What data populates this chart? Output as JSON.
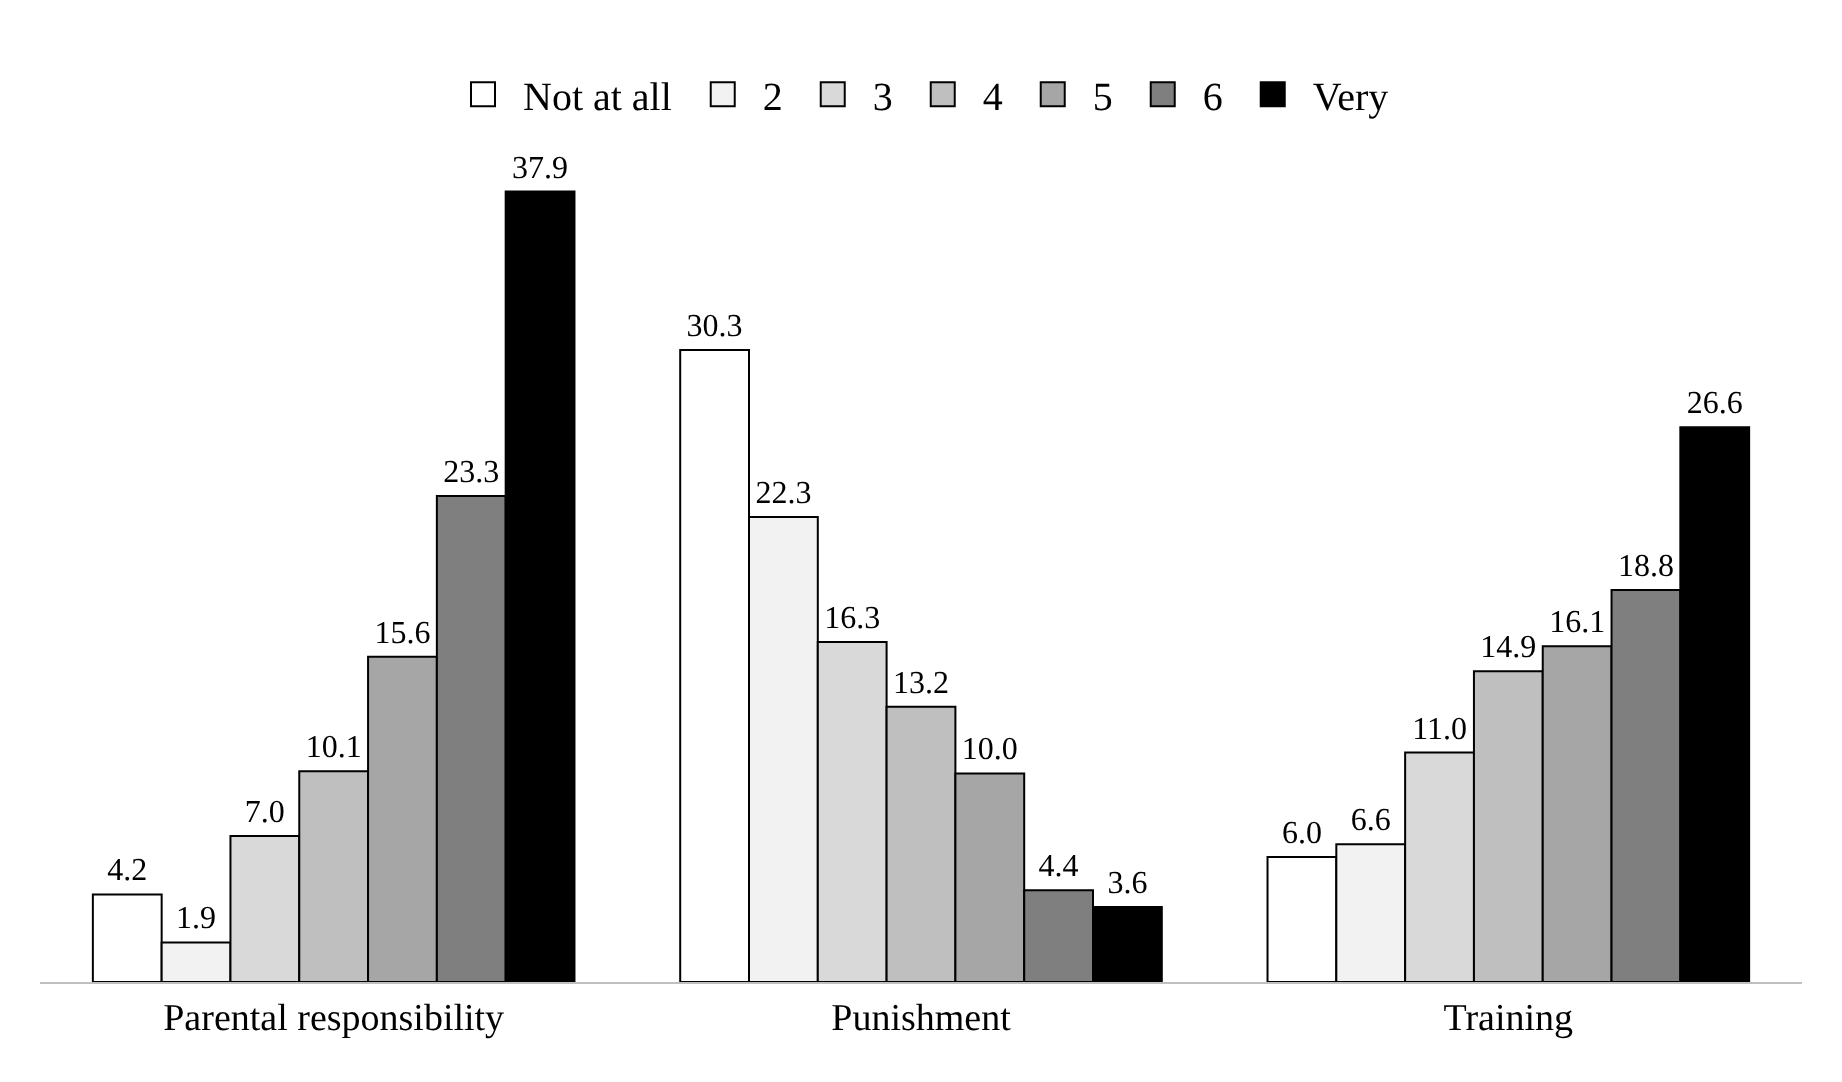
{
  "chart_data": {
    "type": "bar",
    "categories": [
      "Parental responsibility",
      "Punishment",
      "Training"
    ],
    "series": [
      {
        "name": "Not at all",
        "color": "#ffffff",
        "values": [
          4.2,
          30.3,
          6.0
        ],
        "value_labels": [
          "4.2",
          "30.3",
          "6.0"
        ]
      },
      {
        "name": "2",
        "color": "#f2f2f2",
        "values": [
          1.9,
          22.3,
          6.6
        ],
        "value_labels": [
          "1.9",
          "22.3",
          "6.6"
        ]
      },
      {
        "name": "3",
        "color": "#d9d9d9",
        "values": [
          7.0,
          16.3,
          11.0
        ],
        "value_labels": [
          "7.0",
          "16.3",
          "11.0"
        ]
      },
      {
        "name": "4",
        "color": "#bfbfbf",
        "values": [
          10.1,
          13.2,
          14.9
        ],
        "value_labels": [
          "10.1",
          "13.2",
          "14.9"
        ]
      },
      {
        "name": "5",
        "color": "#a6a6a6",
        "values": [
          15.6,
          10.0,
          16.1
        ],
        "value_labels": [
          "15.6",
          "10.0",
          "16.1"
        ]
      },
      {
        "name": "6",
        "color": "#7f7f7f",
        "values": [
          23.3,
          4.4,
          18.8
        ],
        "value_labels": [
          "23.3",
          "4.4",
          "18.8"
        ]
      },
      {
        "name": "Very",
        "color": "#000000",
        "values": [
          37.9,
          3.6,
          26.6
        ],
        "value_labels": [
          "37.9",
          "3.6",
          "26.6"
        ]
      }
    ],
    "legend": "top"
  }
}
